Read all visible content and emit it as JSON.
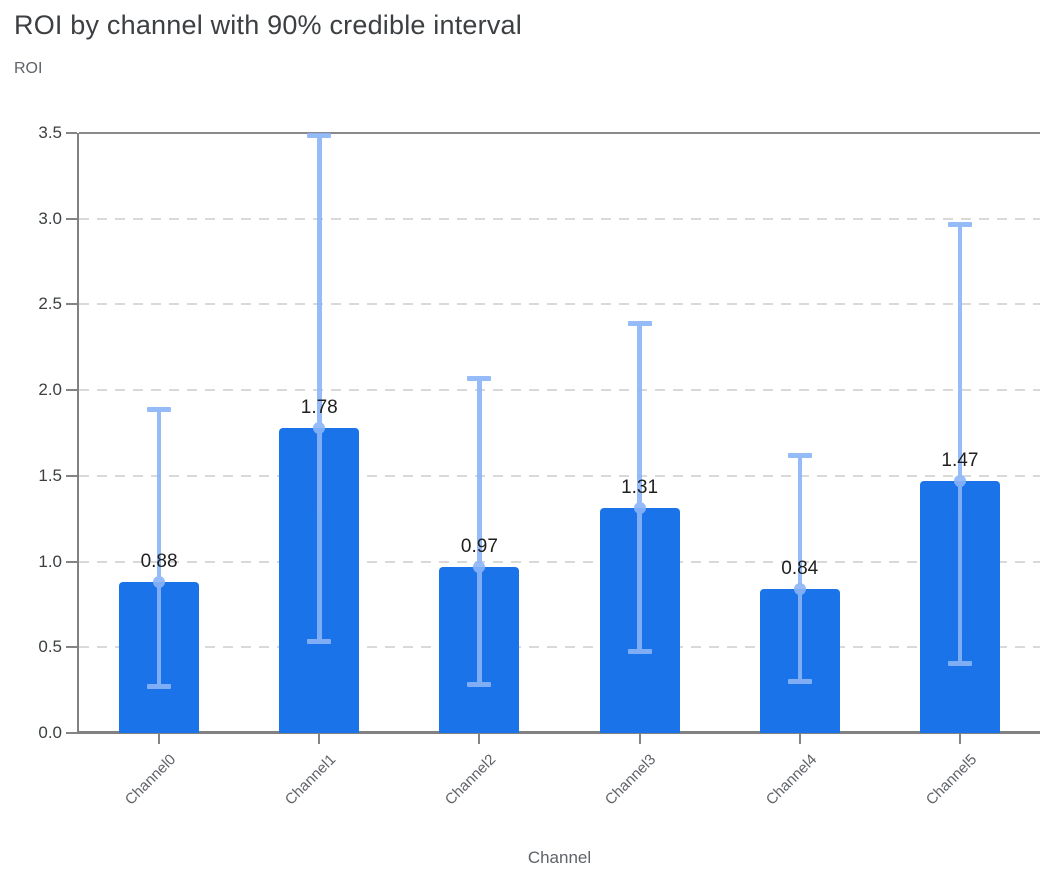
{
  "header": {
    "title": "ROI by channel with 90% credible interval",
    "y_axis_caption": "ROI"
  },
  "chart_data": {
    "type": "bar",
    "title": "ROI by channel with 90% credible interval",
    "xlabel": "Channel",
    "ylabel": "ROI",
    "categories": [
      "Channel0",
      "Channel1",
      "Channel2",
      "Channel3",
      "Channel4",
      "Channel5"
    ],
    "values": [
      0.88,
      1.78,
      0.97,
      1.31,
      0.84,
      1.47
    ],
    "bar_labels": [
      "0.88",
      "1.78",
      "0.97",
      "1.31",
      "0.84",
      "1.47"
    ],
    "error_low": [
      0.27,
      0.53,
      0.28,
      0.47,
      0.3,
      0.4
    ],
    "error_high": [
      1.89,
      3.49,
      2.07,
      2.39,
      1.62,
      2.97
    ],
    "error_bar_meaning": "90% credible interval",
    "ylim": [
      0,
      3.5
    ],
    "ytick_labels": [
      "0.0",
      "0.5",
      "1.0",
      "1.5",
      "2.0",
      "2.5",
      "3.0",
      "3.5"
    ],
    "grid": "horizontal-dashed",
    "legend": "none"
  },
  "colors": {
    "bar": "#1a73e8",
    "error_bar": "#8ab4f8",
    "grid": "#d9d9d9",
    "axis": "#818181",
    "title_text": "#3c4043",
    "caption_text": "#5f6368",
    "value_label_text": "#1f1f1f"
  }
}
